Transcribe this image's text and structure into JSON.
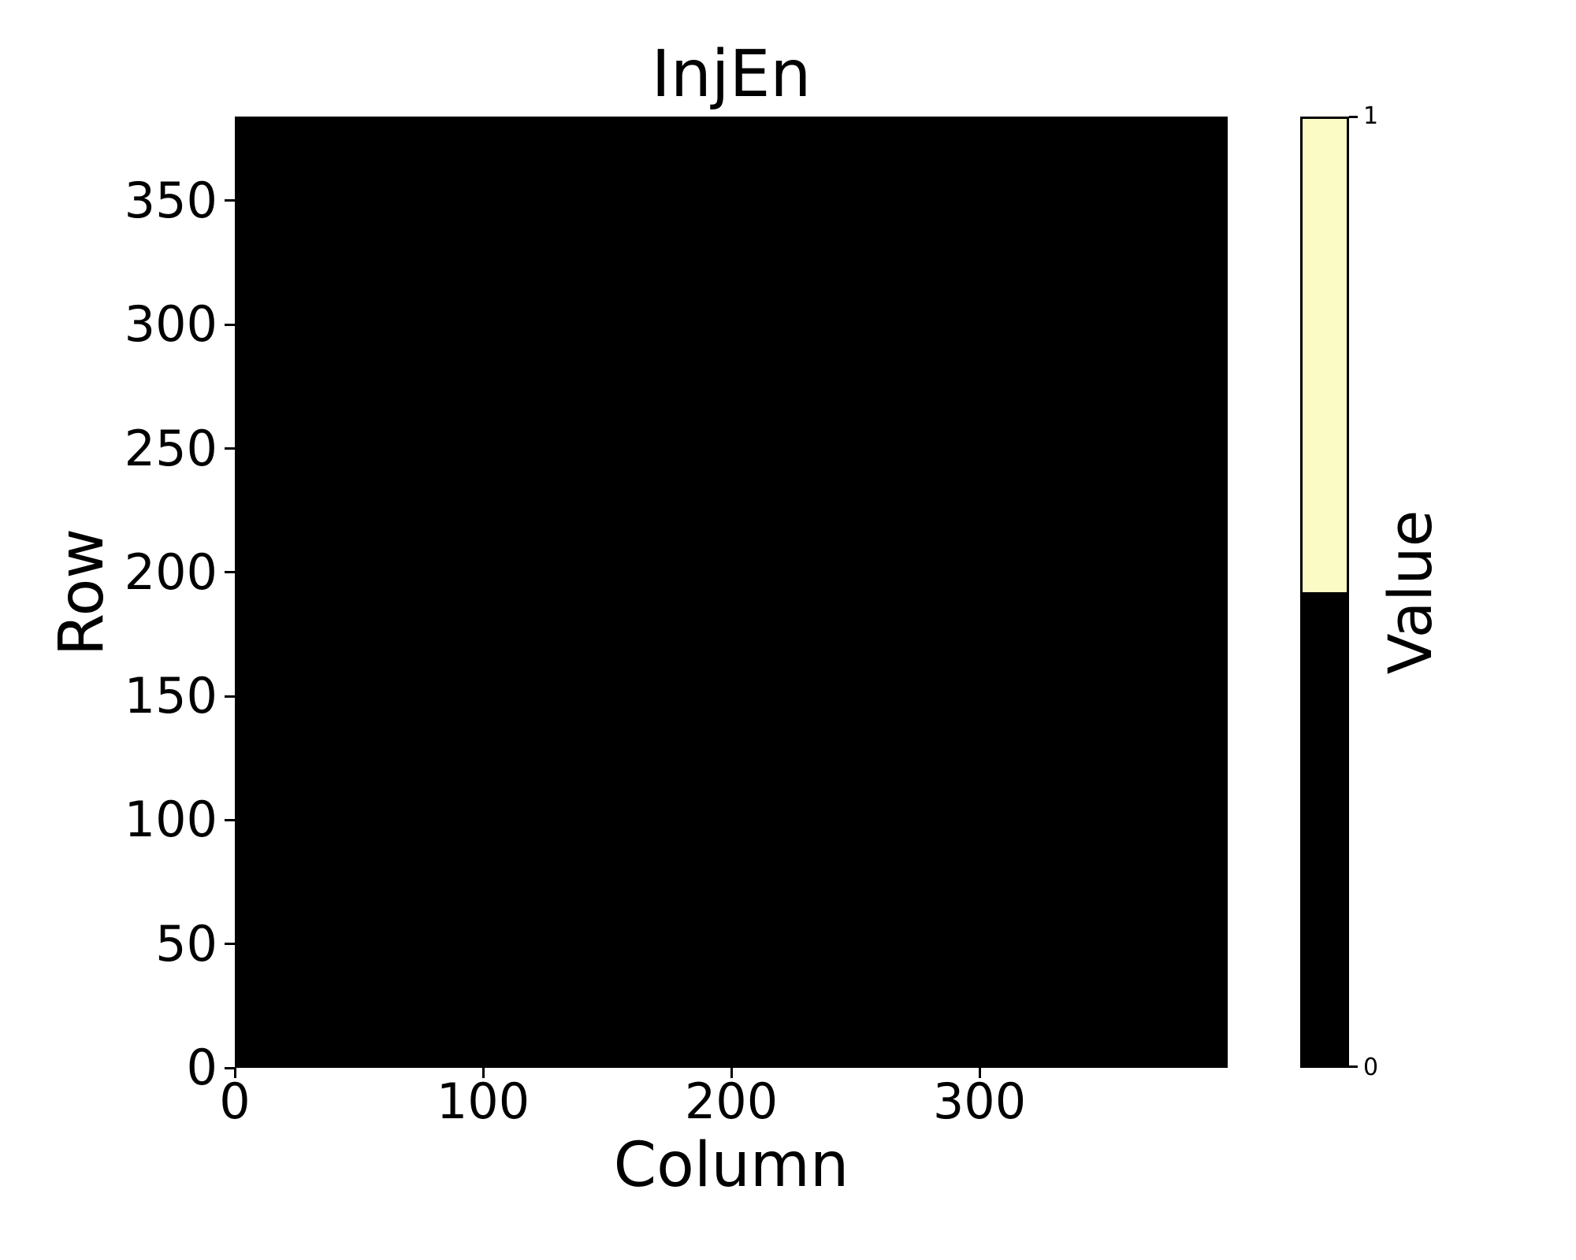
{
  "chart_data": {
    "type": "heatmap",
    "title": "InjEn",
    "xlabel": "Column",
    "ylabel": "Row",
    "x_range": [
      0,
      400
    ],
    "y_range": [
      0,
      384
    ],
    "x_ticks": [
      0,
      100,
      200,
      300
    ],
    "y_ticks": [
      0,
      50,
      100,
      150,
      200,
      250,
      300,
      350
    ],
    "uniform_value": 0,
    "values_description": "Every cell of the 400x384 map has value 0, so the whole heatmap renders solid black",
    "colormap": {
      "0": "#000000",
      "1": "#FBFCC5"
    },
    "colorbar": {
      "label": "Value",
      "ticks": [
        {
          "value": 1,
          "label": "1"
        },
        {
          "value": 0,
          "label": "0"
        }
      ]
    },
    "grid": false,
    "legend": null
  },
  "colors": {
    "background": "#FFFFFF",
    "axis": "#000000",
    "text": "#000000"
  }
}
